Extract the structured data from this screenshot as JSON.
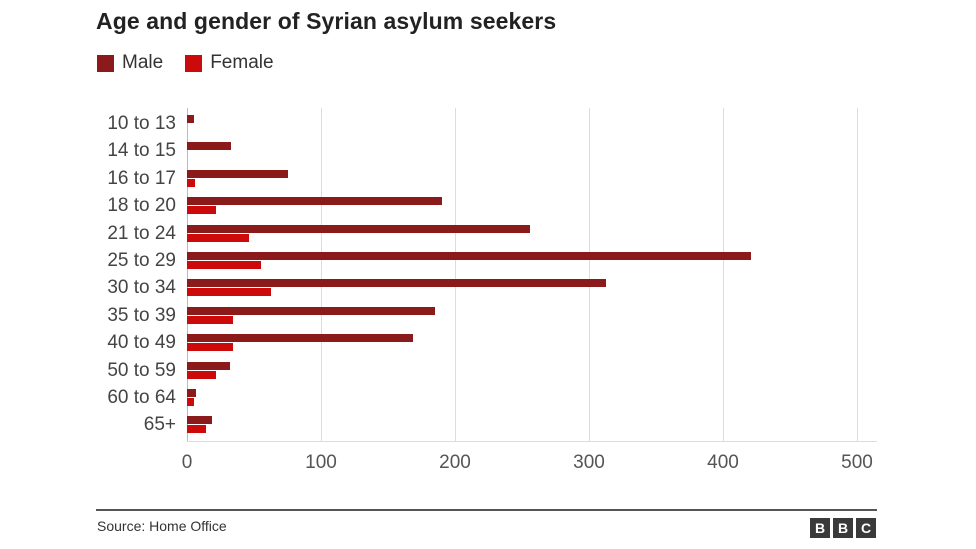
{
  "title": "Age and gender of Syrian asylum seekers",
  "legend": [
    {
      "label": "Male",
      "color": "#8b1a1a"
    },
    {
      "label": "Female",
      "color": "#cc0a0a"
    }
  ],
  "footer": {
    "source": "Source: Home Office",
    "logo": [
      "B",
      "B",
      "C"
    ]
  },
  "chart_data": {
    "type": "bar",
    "orientation": "horizontal",
    "title": "Age and gender of Syrian asylum seekers",
    "xlabel": "",
    "ylabel": "",
    "xlim": [
      0,
      500
    ],
    "xticks": [
      0,
      100,
      200,
      300,
      400,
      500
    ],
    "grid": true,
    "legend_position": "top-left",
    "categories": [
      "10 to 13",
      "14 to 15",
      "16 to 17",
      "18 to 20",
      "21 to 24",
      "25 to 29",
      "30 to 34",
      "35 to 39",
      "40 to 49",
      "50 to 59",
      "60 to 64",
      "65+"
    ],
    "series": [
      {
        "name": "Male",
        "color": "#8b1a1a",
        "values": [
          5,
          33,
          75,
          190,
          256,
          421,
          313,
          185,
          169,
          32,
          7,
          19
        ]
      },
      {
        "name": "Female",
        "color": "#cc0a0a",
        "values": [
          0,
          0,
          6,
          22,
          46,
          55,
          63,
          34,
          34,
          22,
          5,
          14
        ]
      }
    ],
    "source": "Source: Home Office"
  }
}
